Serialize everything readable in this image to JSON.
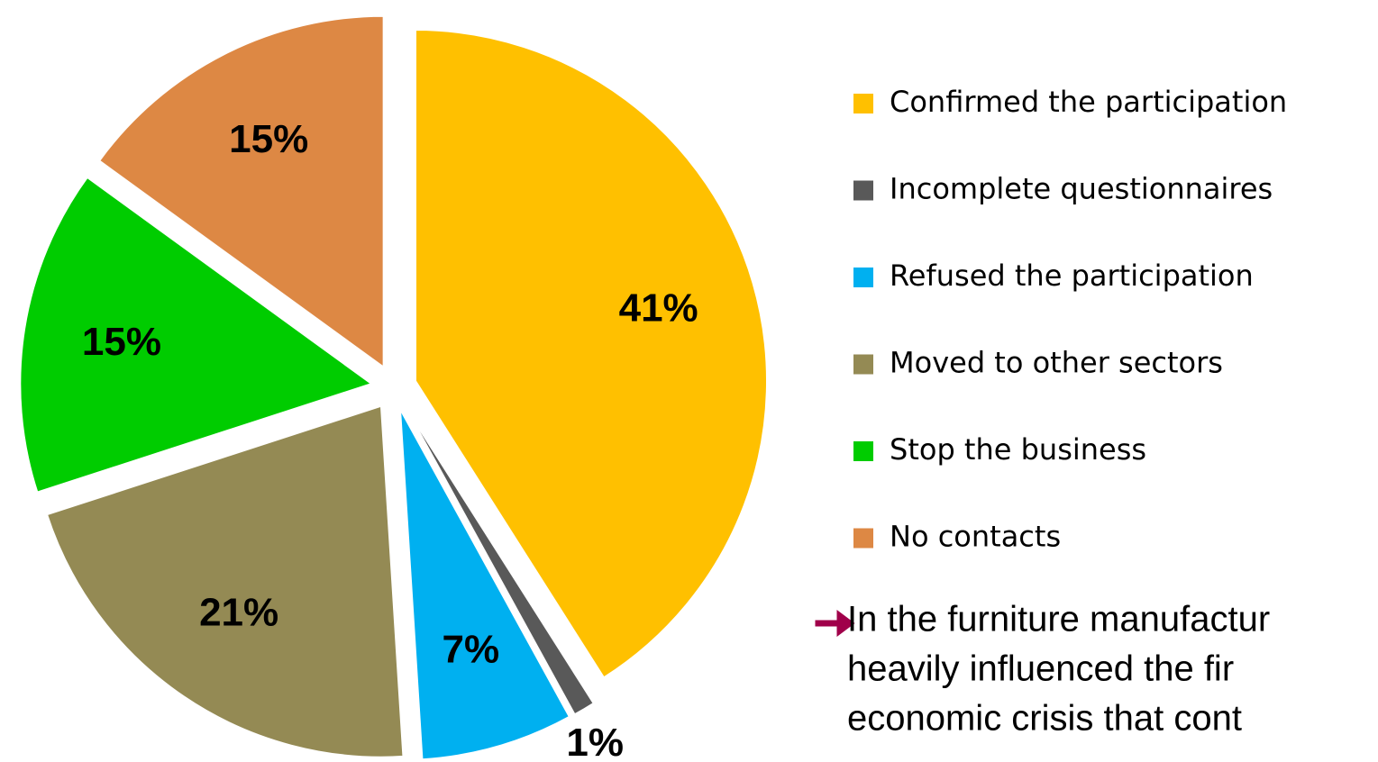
{
  "chart_data": {
    "type": "pie",
    "categories": [
      "Confirmed the participation",
      "Incomplete questionnaires",
      "Refused the participation",
      "Moved to other sectors",
      "Stop the business",
      "No contacts"
    ],
    "values": [
      41,
      1,
      7,
      21,
      15,
      15
    ],
    "value_labels": [
      "41%",
      "1%",
      "7%",
      "21%",
      "15%",
      "15%"
    ],
    "colors": [
      "#FFC000",
      "#595959",
      "#00B0F0",
      "#948A54",
      "#00CC00",
      "#DD8844"
    ],
    "legend": "right",
    "note": [
      "In the furniture manufactur",
      "heavily influenced the fir",
      "economic crisis that cont"
    ]
  }
}
